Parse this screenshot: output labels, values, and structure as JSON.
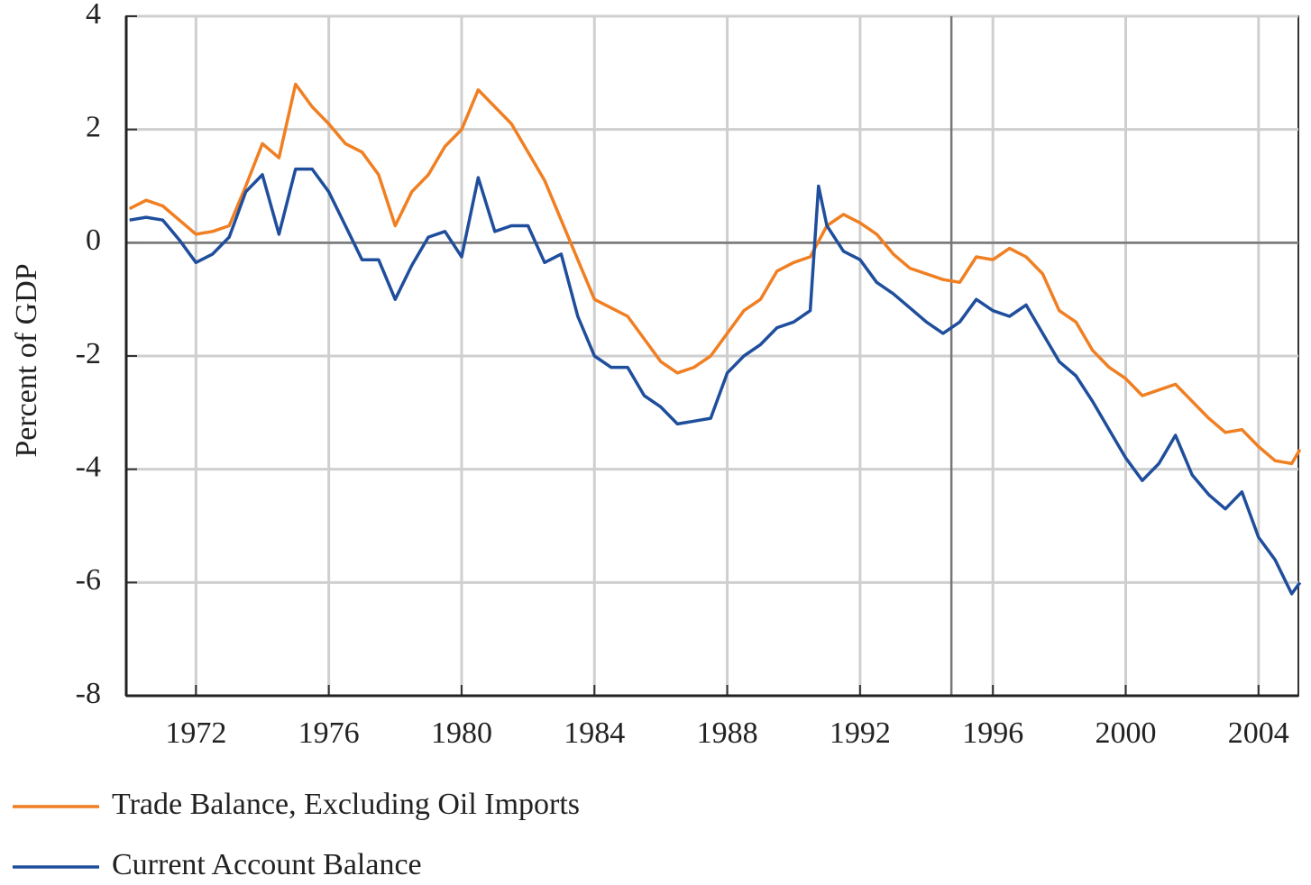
{
  "chart_data": {
    "type": "line",
    "ylabel": "Percent of GDP",
    "xlim": [
      1969.9,
      2005.2
    ],
    "ylim": [
      -8,
      4
    ],
    "xticks": [
      1972,
      1976,
      1980,
      1984,
      1988,
      1992,
      1996,
      2000,
      2004
    ],
    "yticks": [
      -8,
      -6,
      -4,
      -2,
      0,
      2,
      4
    ],
    "grid": true,
    "vline": 1994.75,
    "legend": "bottom",
    "series": [
      {
        "name": "Trade Balance, Excluding Oil Imports",
        "color": "#f07f22",
        "x": [
          1970.0,
          1970.5,
          1971.0,
          1971.5,
          1972.0,
          1972.5,
          1973.0,
          1973.5,
          1974.0,
          1974.5,
          1975.0,
          1975.5,
          1976.0,
          1976.5,
          1977.0,
          1977.5,
          1978.0,
          1978.5,
          1979.0,
          1979.5,
          1980.0,
          1980.5,
          1981.0,
          1981.5,
          1982.0,
          1982.5,
          1983.0,
          1983.5,
          1984.0,
          1984.5,
          1985.0,
          1985.5,
          1986.0,
          1986.5,
          1987.0,
          1987.5,
          1988.0,
          1988.5,
          1989.0,
          1989.5,
          1990.0,
          1990.5,
          1991.0,
          1991.5,
          1992.0,
          1992.5,
          1993.0,
          1993.5,
          1994.0,
          1994.5,
          1995.0,
          1995.5,
          1996.0,
          1996.5,
          1997.0,
          1997.5,
          1998.0,
          1998.5,
          1999.0,
          1999.5,
          2000.0,
          2000.5,
          2001.0,
          2001.5,
          2002.0,
          2002.5,
          2003.0,
          2003.5,
          2004.0,
          2004.5,
          2005.0,
          2005.25
        ],
        "values": [
          0.6,
          0.75,
          0.65,
          0.4,
          0.15,
          0.2,
          0.3,
          1.0,
          1.75,
          1.5,
          2.8,
          2.4,
          2.1,
          1.75,
          1.6,
          1.2,
          0.3,
          0.9,
          1.2,
          1.7,
          2.0,
          2.7,
          2.4,
          2.1,
          1.6,
          1.1,
          0.4,
          -0.3,
          -1.0,
          -1.15,
          -1.3,
          -1.7,
          -2.1,
          -2.3,
          -2.2,
          -2.0,
          -1.6,
          -1.2,
          -1.0,
          -0.5,
          -0.35,
          -0.25,
          0.3,
          0.5,
          0.35,
          0.15,
          -0.2,
          -0.45,
          -0.55,
          -0.65,
          -0.7,
          -0.25,
          -0.3,
          -0.1,
          -0.25,
          -0.55,
          -1.2,
          -1.4,
          -1.9,
          -2.2,
          -2.4,
          -2.7,
          -2.6,
          -2.5,
          -2.8,
          -3.1,
          -3.35,
          -3.3,
          -3.6,
          -3.85,
          -3.9,
          -3.65
        ]
      },
      {
        "name": "Current Account Balance",
        "color": "#1f4e9c",
        "x": [
          1970.0,
          1970.5,
          1971.0,
          1971.5,
          1972.0,
          1972.5,
          1973.0,
          1973.5,
          1974.0,
          1974.5,
          1975.0,
          1975.5,
          1976.0,
          1976.5,
          1977.0,
          1977.5,
          1978.0,
          1978.5,
          1979.0,
          1979.5,
          1980.0,
          1980.5,
          1981.0,
          1981.5,
          1982.0,
          1982.5,
          1983.0,
          1983.5,
          1984.0,
          1984.5,
          1985.0,
          1985.5,
          1986.0,
          1986.5,
          1987.0,
          1987.5,
          1988.0,
          1988.5,
          1989.0,
          1989.5,
          1990.0,
          1990.5,
          1990.75,
          1991.0,
          1991.5,
          1992.0,
          1992.5,
          1993.0,
          1993.5,
          1994.0,
          1994.5,
          1995.0,
          1995.5,
          1996.0,
          1996.5,
          1997.0,
          1997.5,
          1998.0,
          1998.5,
          1999.0,
          1999.5,
          2000.0,
          2000.5,
          2001.0,
          2001.5,
          2002.0,
          2002.5,
          2003.0,
          2003.5,
          2004.0,
          2004.5,
          2005.0,
          2005.25
        ],
        "values": [
          0.4,
          0.45,
          0.4,
          0.05,
          -0.35,
          -0.2,
          0.1,
          0.9,
          1.2,
          0.15,
          1.3,
          1.3,
          0.9,
          0.3,
          -0.3,
          -0.3,
          -1.0,
          -0.4,
          0.1,
          0.2,
          -0.25,
          1.15,
          0.2,
          0.3,
          0.3,
          -0.35,
          -0.2,
          -1.3,
          -2.0,
          -2.2,
          -2.2,
          -2.7,
          -2.9,
          -3.2,
          -3.15,
          -3.1,
          -2.3,
          -2.0,
          -1.8,
          -1.5,
          -1.4,
          -1.2,
          1.0,
          0.3,
          -0.15,
          -0.3,
          -0.7,
          -0.9,
          -1.15,
          -1.4,
          -1.6,
          -1.4,
          -1.0,
          -1.2,
          -1.3,
          -1.1,
          -1.6,
          -2.1,
          -2.35,
          -2.8,
          -3.3,
          -3.8,
          -4.2,
          -3.9,
          -3.4,
          -4.1,
          -4.45,
          -4.7,
          -4.4,
          -5.2,
          -5.6,
          -6.2,
          -6.0
        ]
      }
    ]
  }
}
